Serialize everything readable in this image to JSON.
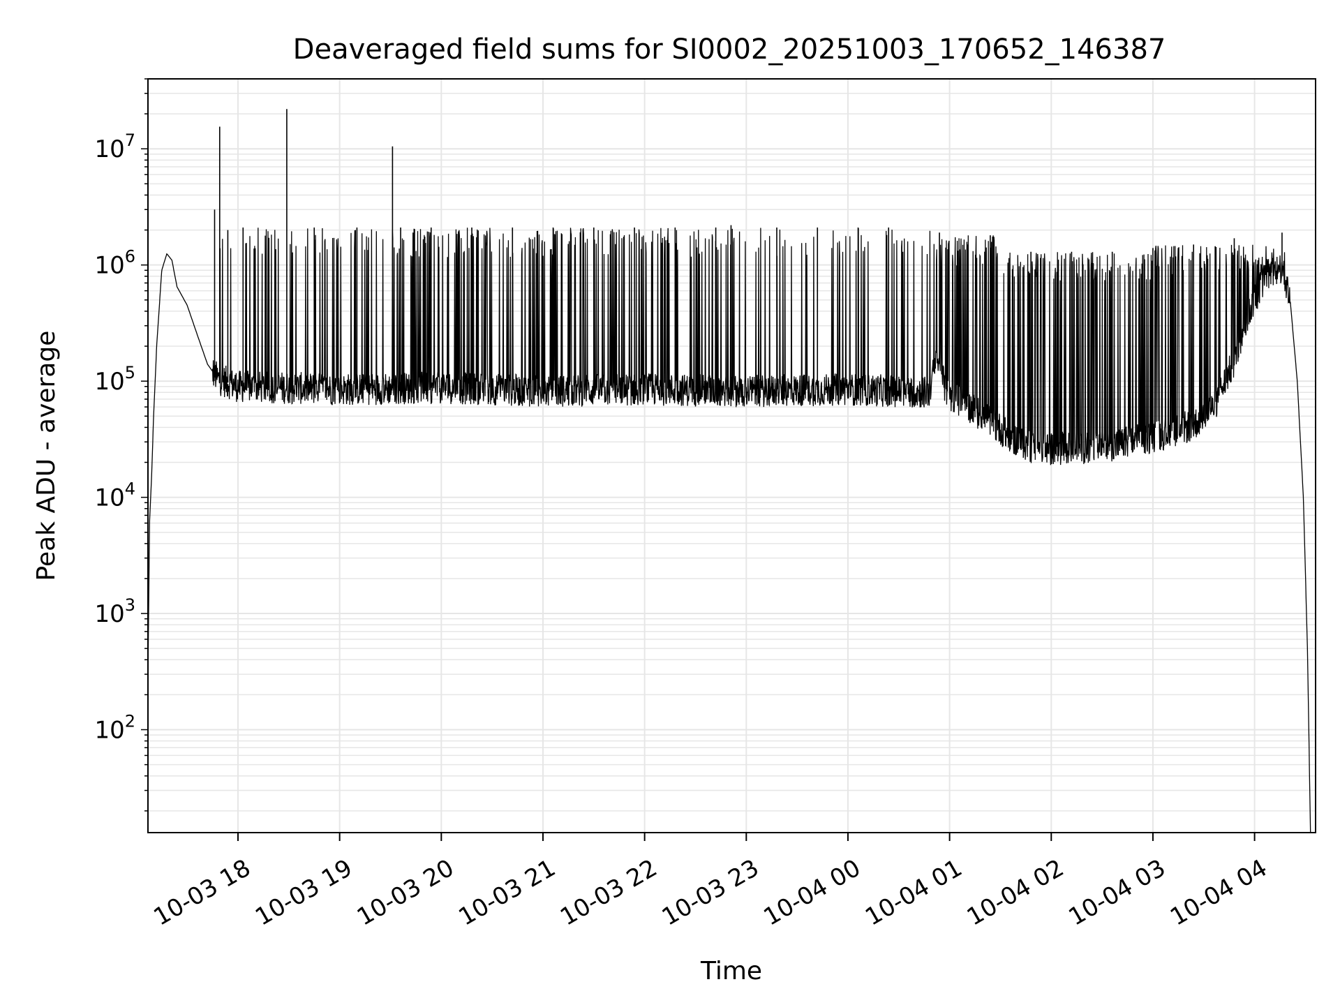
{
  "chart_data": {
    "type": "line",
    "title": "Deaveraged field sums for SI0002_20251003_170652_146387",
    "xlabel": "Time",
    "ylabel": "Peak ADU - average",
    "yscale": "log",
    "ylim": [
      13,
      40000000
    ],
    "xlim_hours": [
      17.1144,
      28.6
    ],
    "grid": true,
    "legend": "none",
    "x_ticks": [
      {
        "label": "10-03 18",
        "hour": 18
      },
      {
        "label": "10-03 19",
        "hour": 19
      },
      {
        "label": "10-03 20",
        "hour": 20
      },
      {
        "label": "10-03 21",
        "hour": 21
      },
      {
        "label": "10-03 22",
        "hour": 22
      },
      {
        "label": "10-03 23",
        "hour": 23
      },
      {
        "label": "10-04 00",
        "hour": 24
      },
      {
        "label": "10-04 01",
        "hour": 25
      },
      {
        "label": "10-04 02",
        "hour": 26
      },
      {
        "label": "10-04 03",
        "hour": 27
      },
      {
        "label": "10-04 04",
        "hour": 28
      }
    ],
    "y_ticks": [
      {
        "base": "10",
        "exp": "2",
        "value": 100
      },
      {
        "base": "10",
        "exp": "3",
        "value": 1000
      },
      {
        "base": "10",
        "exp": "4",
        "value": 10000
      },
      {
        "base": "10",
        "exp": "5",
        "value": 100000
      },
      {
        "base": "10",
        "exp": "6",
        "value": 1000000
      },
      {
        "base": "10",
        "exp": "7",
        "value": 10000000
      }
    ],
    "series": [
      {
        "name": "deaveraged field sum",
        "color": "#000000",
        "baseline_points": [
          [
            17.1144,
            300
          ],
          [
            17.13,
            6000
          ],
          [
            17.15,
            15000
          ],
          [
            17.17,
            50000
          ],
          [
            17.2,
            200000
          ],
          [
            17.25,
            900000
          ],
          [
            17.3,
            1250000
          ],
          [
            17.35,
            1100000
          ],
          [
            17.4,
            650000
          ],
          [
            17.5,
            450000
          ],
          [
            17.6,
            250000
          ],
          [
            17.7,
            140000
          ],
          [
            17.8,
            105000
          ],
          [
            18.0,
            90000
          ],
          [
            19.0,
            85000
          ],
          [
            20.0,
            88000
          ],
          [
            21.0,
            82000
          ],
          [
            22.0,
            85000
          ],
          [
            23.0,
            82000
          ],
          [
            24.0,
            85000
          ],
          [
            24.8,
            80000
          ],
          [
            24.85,
            130000
          ],
          [
            24.9,
            150000
          ],
          [
            24.95,
            90000
          ],
          [
            25.0,
            75000
          ],
          [
            25.2,
            60000
          ],
          [
            25.4,
            45000
          ],
          [
            25.6,
            33000
          ],
          [
            25.8,
            27000
          ],
          [
            26.0,
            26000
          ],
          [
            26.5,
            27000
          ],
          [
            27.0,
            33000
          ],
          [
            27.4,
            42000
          ],
          [
            27.6,
            60000
          ],
          [
            27.8,
            150000
          ],
          [
            27.95,
            400000
          ],
          [
            28.1,
            800000
          ],
          [
            28.27,
            950000
          ],
          [
            28.35,
            500000
          ],
          [
            28.42,
            100000
          ],
          [
            28.48,
            10000
          ],
          [
            28.52,
            500
          ],
          [
            28.55,
            13
          ]
        ],
        "spikes": [
          [
            17.77,
            3000000
          ],
          [
            17.82,
            15500000
          ],
          [
            17.9,
            2000000
          ],
          [
            18.05,
            2100000
          ],
          [
            18.3,
            1000000
          ],
          [
            18.48,
            22000000
          ],
          [
            18.75,
            2100000
          ],
          [
            19.17,
            2100000
          ],
          [
            19.52,
            10500000
          ],
          [
            19.6,
            2100000
          ],
          [
            19.9,
            2100000
          ],
          [
            20.3,
            2100000
          ],
          [
            20.7,
            2100000
          ],
          [
            21.1,
            2100000
          ],
          [
            21.5,
            2100000
          ],
          [
            21.9,
            2100000
          ],
          [
            22.3,
            2100000
          ],
          [
            22.7,
            2100000
          ],
          [
            22.85,
            2200000
          ],
          [
            23.3,
            2100000
          ],
          [
            23.7,
            2100000
          ],
          [
            24.1,
            2100000
          ],
          [
            24.4,
            2100000
          ],
          [
            24.9,
            1900000
          ],
          [
            25.4,
            1800000
          ],
          [
            25.8,
            1300000
          ],
          [
            26.2,
            1300000
          ],
          [
            26.6,
            1300000
          ],
          [
            27.0,
            1400000
          ],
          [
            27.4,
            1500000
          ],
          [
            27.8,
            1700000
          ],
          [
            28.27,
            1900000
          ]
        ]
      }
    ]
  }
}
